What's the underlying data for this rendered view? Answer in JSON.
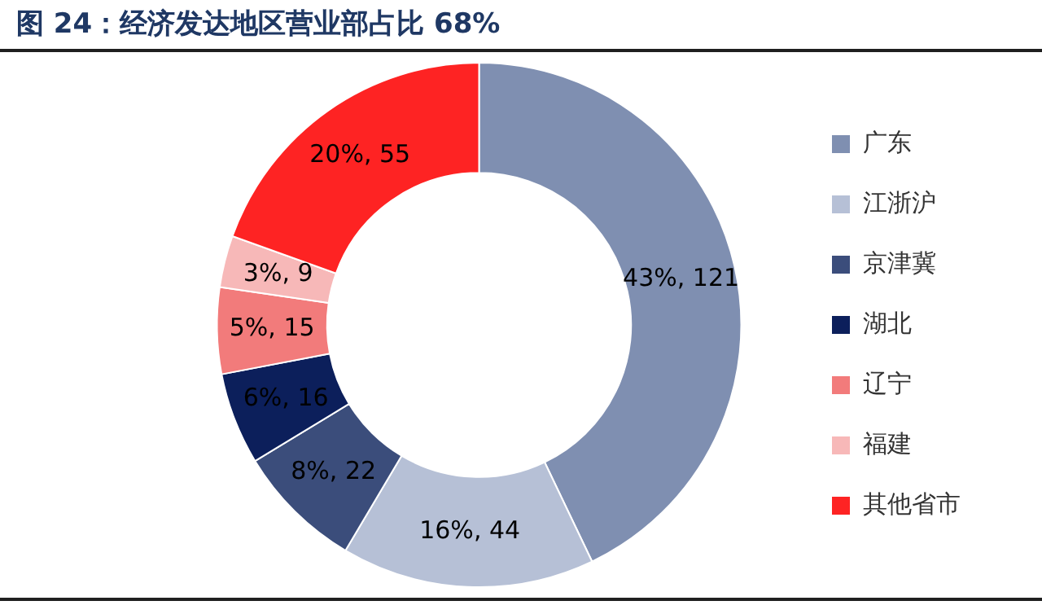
{
  "chart_data": {
    "type": "donut",
    "title": "图 24：经济发达地区营业部占比 68%",
    "categories": [
      "广东",
      "江浙沪",
      "京津冀",
      "湖北",
      "辽宁",
      "福建",
      "其他省市"
    ],
    "values": [
      121,
      44,
      22,
      16,
      15,
      9,
      55
    ],
    "colors": [
      "#7f8fb1",
      "#b6c0d6",
      "#3b4d7b",
      "#0c1f5b",
      "#f27b7b",
      "#f7b8b8",
      "#fe2323"
    ],
    "value_labels": [
      "43%, 121",
      "16%, 44",
      "8%, 22",
      "6%, 16",
      "5%, 15",
      "3%, 9",
      "20%, 55"
    ],
    "legend": "right"
  }
}
